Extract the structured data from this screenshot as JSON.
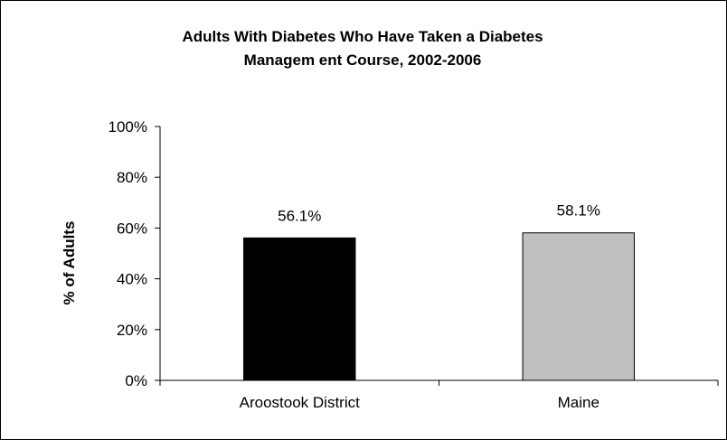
{
  "chart_data": {
    "type": "bar",
    "title_lines": [
      "Adults With Diabetes Who Have Taken a Diabetes",
      "Managem ent Course, 2002-2006"
    ],
    "xlabel": "",
    "ylabel": "% of Adults",
    "categories": [
      "Aroostook District",
      "Maine"
    ],
    "values": [
      56.1,
      58.1
    ],
    "data_labels": [
      "56.1%",
      "58.1%"
    ],
    "colors": [
      "#000000",
      "#c0c0c0"
    ],
    "ylim": [
      0,
      100
    ],
    "yticks": [
      0,
      20,
      40,
      60,
      80,
      100
    ],
    "ytick_labels": [
      "0%",
      "20%",
      "40%",
      "60%",
      "80%",
      "100%"
    ],
    "grid": false,
    "legend": "none"
  }
}
